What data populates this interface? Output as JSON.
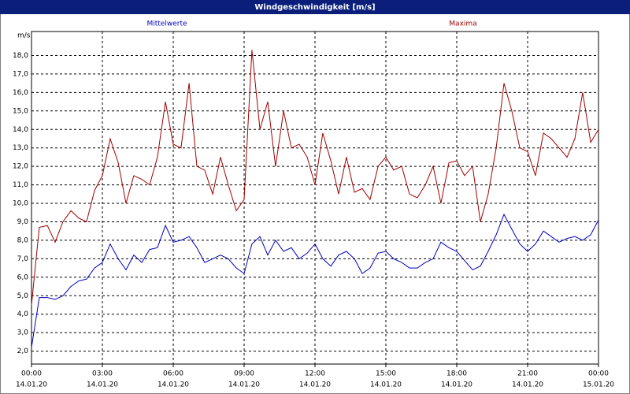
{
  "chart_data": {
    "type": "line",
    "title": "Windgeschwindigkeit [m/s]",
    "y_label": "m/s",
    "x": [
      0,
      0.33,
      0.67,
      1,
      1.33,
      1.67,
      2,
      2.33,
      2.67,
      3,
      3.33,
      3.67,
      4,
      4.33,
      4.67,
      5,
      5.33,
      5.67,
      6,
      6.33,
      6.67,
      7,
      7.33,
      7.67,
      8,
      8.33,
      8.67,
      9,
      9.33,
      9.67,
      10,
      10.33,
      10.67,
      11,
      11.33,
      11.67,
      12,
      12.33,
      12.67,
      13,
      13.33,
      13.67,
      14,
      14.33,
      14.67,
      15,
      15.33,
      15.67,
      16,
      16.33,
      16.67,
      17,
      17.33,
      17.67,
      18,
      18.33,
      18.67,
      19,
      19.33,
      19.67,
      20,
      20.33,
      20.67,
      21,
      21.33,
      21.67,
      22,
      22.33,
      22.67,
      23,
      23.33,
      23.67,
      24
    ],
    "series": [
      {
        "name": "Mittelwerte",
        "color": "#0000c0",
        "values": [
          2.2,
          4.9,
          4.9,
          4.8,
          5.0,
          5.5,
          5.8,
          5.9,
          6.5,
          6.8,
          7.8,
          7.0,
          6.4,
          7.2,
          6.8,
          7.5,
          7.6,
          8.8,
          7.9,
          8.0,
          8.2,
          7.6,
          6.8,
          7.0,
          7.2,
          7.0,
          6.5,
          6.2,
          7.8,
          8.2,
          7.2,
          8.0,
          7.4,
          7.6,
          7.0,
          7.3,
          7.8,
          7.0,
          6.6,
          7.2,
          7.4,
          7.0,
          6.2,
          6.5,
          7.3,
          7.4,
          7.0,
          6.8,
          6.5,
          6.5,
          6.8,
          7.0,
          7.9,
          7.6,
          7.4,
          6.9,
          6.4,
          6.6,
          7.4,
          8.3,
          9.4,
          8.6,
          7.8,
          7.4,
          7.8,
          8.5,
          8.2,
          7.9,
          8.1,
          8.2,
          8.0,
          8.3,
          9.1
        ]
      },
      {
        "name": "Maxima",
        "color": "#a00000",
        "values": [
          4.5,
          8.7,
          8.8,
          7.9,
          9.0,
          9.6,
          9.2,
          9.0,
          10.7,
          11.5,
          13.5,
          12.2,
          10.0,
          11.5,
          11.3,
          11.0,
          12.5,
          15.5,
          13.2,
          13.0,
          16.5,
          12.0,
          11.8,
          10.5,
          12.5,
          11.0,
          9.6,
          10.2,
          18.3,
          14.0,
          15.5,
          12.0,
          15.0,
          13.0,
          13.2,
          12.5,
          11.0,
          13.8,
          12.3,
          10.5,
          12.5,
          10.6,
          10.8,
          10.2,
          12.0,
          12.5,
          11.8,
          12.0,
          10.5,
          10.3,
          11.0,
          12.0,
          10.0,
          12.2,
          12.3,
          11.5,
          12.0,
          9.0,
          10.5,
          13.0,
          16.5,
          15.0,
          13.0,
          12.8,
          11.5,
          13.8,
          13.5,
          13.0,
          12.5,
          13.5,
          16.0,
          13.3,
          14.0
        ]
      }
    ],
    "xlim": [
      0,
      24
    ],
    "xticks": [
      {
        "value": 0,
        "label": "00:00",
        "sublabel": "14.01.20"
      },
      {
        "value": 3,
        "label": "03:00",
        "sublabel": "14.01.20"
      },
      {
        "value": 6,
        "label": "06:00",
        "sublabel": "14.01.20"
      },
      {
        "value": 9,
        "label": "09:00",
        "sublabel": "14.01.20"
      },
      {
        "value": 12,
        "label": "12:00",
        "sublabel": "14.01.20"
      },
      {
        "value": 15,
        "label": "15:00",
        "sublabel": "14.01.20"
      },
      {
        "value": 18,
        "label": "18:00",
        "sublabel": "14.01.20"
      },
      {
        "value": 21,
        "label": "21:00",
        "sublabel": "14.01.20"
      },
      {
        "value": 24,
        "label": "00:00",
        "sublabel": "15.01.20"
      }
    ],
    "ylim": [
      1.3,
      19.3
    ],
    "yticks": [
      {
        "value": 2,
        "label": "2,0"
      },
      {
        "value": 3,
        "label": "3,0"
      },
      {
        "value": 4,
        "label": "4,0"
      },
      {
        "value": 5,
        "label": "5,0"
      },
      {
        "value": 6,
        "label": "6,0"
      },
      {
        "value": 7,
        "label": "7,0"
      },
      {
        "value": 8,
        "label": "8,0"
      },
      {
        "value": 9,
        "label": "9,0"
      },
      {
        "value": 10,
        "label": "10,0"
      },
      {
        "value": 11,
        "label": "11,0"
      },
      {
        "value": 12,
        "label": "12,0"
      },
      {
        "value": 13,
        "label": "13,0"
      },
      {
        "value": 14,
        "label": "14,0"
      },
      {
        "value": 15,
        "label": "15,0"
      },
      {
        "value": 16,
        "label": "16,0"
      },
      {
        "value": 17,
        "label": "17,0"
      },
      {
        "value": 18,
        "label": "18,0"
      }
    ],
    "grid": true
  }
}
